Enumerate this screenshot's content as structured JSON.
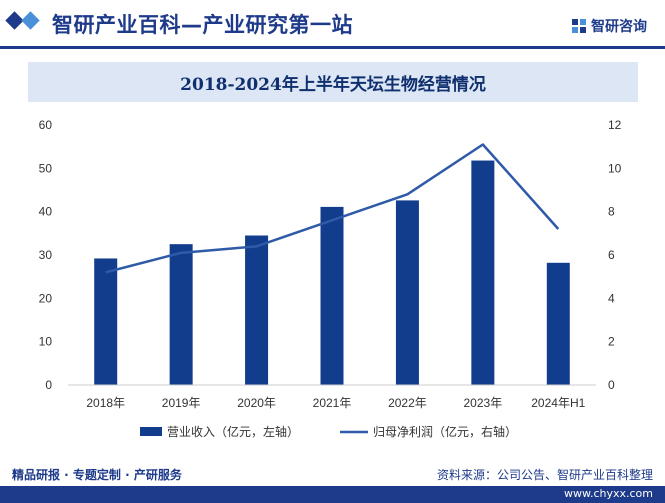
{
  "header": {
    "site_title": "智研产业百科—产业研究第一站",
    "brand": "智研咨询",
    "accent": "#1e3a8a",
    "accent_light": "#4a90d9"
  },
  "chart_data": {
    "type": "bar",
    "title": "2018-2024年上半年天坛生物经营情况",
    "categories": [
      "2018年",
      "2019年",
      "2020年",
      "2021年",
      "2022年",
      "2023年",
      "2024年H1"
    ],
    "series": [
      {
        "name": "营业收入（亿元，左轴）",
        "kind": "bar",
        "axis": "left",
        "color": "#123c8c",
        "values": [
          29.2,
          32.5,
          34.5,
          41.1,
          42.6,
          51.8,
          28.2
        ]
      },
      {
        "name": "归母净利润（亿元，右轴）",
        "kind": "line",
        "axis": "right",
        "color": "#2e5aa8",
        "values": [
          5.2,
          6.1,
          6.4,
          7.6,
          8.8,
          11.1,
          7.2
        ]
      }
    ],
    "ylim_left": [
      0,
      60
    ],
    "yticks_left": [
      "0",
      "10",
      "20",
      "30",
      "40",
      "50",
      "60"
    ],
    "ylim_right": [
      0,
      12
    ],
    "yticks_right": [
      "0",
      "2",
      "4",
      "6",
      "8",
      "10",
      "12"
    ],
    "legend_position": "bottom"
  },
  "footer": {
    "left": "精品研报 · 专题定制 · 产研服务",
    "right": "资料来源：公司公告、智研产业百科整理",
    "url": "www.chyxx.com"
  }
}
